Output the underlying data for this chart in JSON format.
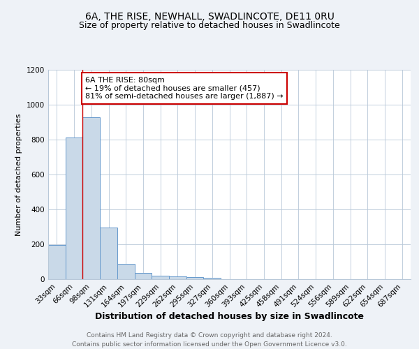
{
  "title1": "6A, THE RISE, NEWHALL, SWADLINCOTE, DE11 0RU",
  "title2": "Size of property relative to detached houses in Swadlincote",
  "xlabel": "Distribution of detached houses by size in Swadlincote",
  "ylabel": "Number of detached properties",
  "categories": [
    "33sqm",
    "66sqm",
    "98sqm",
    "131sqm",
    "164sqm",
    "197sqm",
    "229sqm",
    "262sqm",
    "295sqm",
    "327sqm",
    "360sqm",
    "393sqm",
    "425sqm",
    "458sqm",
    "491sqm",
    "524sqm",
    "556sqm",
    "589sqm",
    "622sqm",
    "654sqm",
    "687sqm"
  ],
  "values": [
    197,
    813,
    930,
    295,
    88,
    38,
    22,
    15,
    12,
    10,
    0,
    0,
    0,
    0,
    0,
    0,
    0,
    0,
    0,
    0,
    0
  ],
  "bar_color": "#c9d9e8",
  "bar_edge_color": "#6699cc",
  "vline_x_idx": 1.5,
  "vline_color": "#cc0000",
  "annotation_text": "6A THE RISE: 80sqm\n← 19% of detached houses are smaller (457)\n81% of semi-detached houses are larger (1,887) →",
  "annotation_box_color": "white",
  "annotation_box_edge": "#cc0000",
  "ylim": [
    0,
    1200
  ],
  "yticks": [
    0,
    200,
    400,
    600,
    800,
    1000,
    1200
  ],
  "background_color": "#eef2f7",
  "plot_bg_color": "white",
  "footer_text": "Contains HM Land Registry data © Crown copyright and database right 2024.\nContains public sector information licensed under the Open Government Licence v3.0.",
  "title1_fontsize": 10,
  "title2_fontsize": 9,
  "xlabel_fontsize": 9,
  "ylabel_fontsize": 8,
  "tick_fontsize": 7.5,
  "footer_fontsize": 6.5,
  "annot_fontsize": 8
}
